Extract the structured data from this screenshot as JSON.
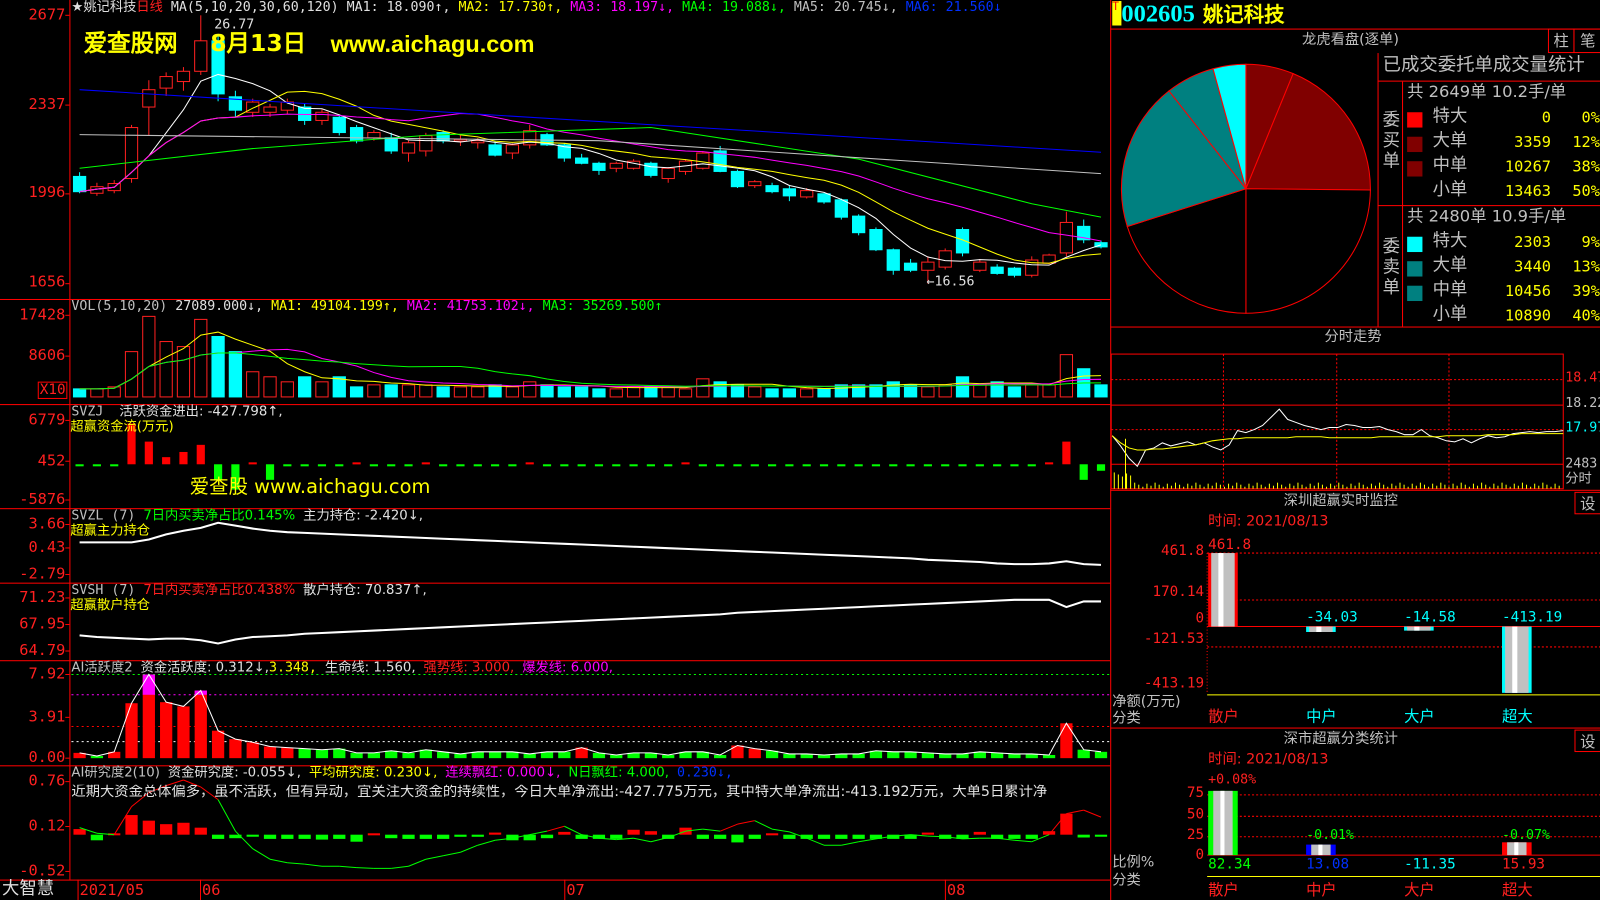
{
  "header": {
    "name_line": "★姚记科技",
    "period": "日线",
    "ma_label": "MA(5,10,20,30,60,120)",
    "ma1": "MA1: 18.090↑,",
    "ma2": "MA2: 17.730↑,",
    "ma3": "MA3: 18.197↓,",
    "ma4": "MA4: 19.088↓,",
    "ma5": "MA5: 20.745↓,",
    "ma6": "MA6: 21.560↓",
    "high_mark": "26.77",
    "low_mark": "←16.56"
  },
  "watermark": {
    "site": "爱查股网",
    "date": "8月13日",
    "url": "www.aichagu.com",
    "small": "爱查股 www.aichagu.com"
  },
  "colors": {
    "up": "#ff2020",
    "down": "#00ffff",
    "ma5": "#ffffff",
    "ma10": "#ffff00",
    "ma20": "#ff00ff",
    "ma30": "#00ff00",
    "ma60": "#c0c0c0",
    "ma120": "#0000ff"
  },
  "price_axis": {
    "ticks": [
      "2677",
      "2337",
      "1996",
      "1656"
    ],
    "range": [
      16.56,
      26.77
    ]
  },
  "candles": [
    [
      20.64,
      20.8,
      20.0,
      20.06
    ],
    [
      20.0,
      20.4,
      19.9,
      20.25
    ],
    [
      20.1,
      20.5,
      20.0,
      20.37
    ],
    [
      20.56,
      22.6,
      20.4,
      22.5
    ],
    [
      23.28,
      24.3,
      22.2,
      23.94
    ],
    [
      24.0,
      24.6,
      23.7,
      24.44
    ],
    [
      24.25,
      24.8,
      23.9,
      24.64
    ],
    [
      24.64,
      26.77,
      24.5,
      25.8
    ],
    [
      25.8,
      26.0,
      23.5,
      23.78
    ],
    [
      23.67,
      23.9,
      22.9,
      23.16
    ],
    [
      23.08,
      23.6,
      22.9,
      23.47
    ],
    [
      23.08,
      23.4,
      22.9,
      23.28
    ],
    [
      23.16,
      23.6,
      23.0,
      23.47
    ],
    [
      23.28,
      23.4,
      22.6,
      22.77
    ],
    [
      22.77,
      23.2,
      22.6,
      23.08
    ],
    [
      22.89,
      23.0,
      22.2,
      22.31
    ],
    [
      22.5,
      22.6,
      21.9,
      21.99
    ],
    [
      22.11,
      22.4,
      22.0,
      22.31
    ],
    [
      22.11,
      22.3,
      21.5,
      21.61
    ],
    [
      21.53,
      22.0,
      21.2,
      21.92
    ],
    [
      21.61,
      22.3,
      21.4,
      22.19
    ],
    [
      22.31,
      22.4,
      21.9,
      21.99
    ],
    [
      21.99,
      22.2,
      21.8,
      22.05
    ],
    [
      21.92,
      22.1,
      21.7,
      22.0
    ],
    [
      21.84,
      22.0,
      21.4,
      21.45
    ],
    [
      21.53,
      21.9,
      21.3,
      21.84
    ],
    [
      21.84,
      22.6,
      21.7,
      22.38
    ],
    [
      22.23,
      22.3,
      21.8,
      21.84
    ],
    [
      21.84,
      21.9,
      21.2,
      21.34
    ],
    [
      21.34,
      21.5,
      21.1,
      21.14
    ],
    [
      21.14,
      21.2,
      20.7,
      20.87
    ],
    [
      20.95,
      21.2,
      20.8,
      21.14
    ],
    [
      20.95,
      21.3,
      20.9,
      21.22
    ],
    [
      21.14,
      21.2,
      20.6,
      20.68
    ],
    [
      20.56,
      21.0,
      20.4,
      20.95
    ],
    [
      20.83,
      21.3,
      20.7,
      21.22
    ],
    [
      20.95,
      21.6,
      20.9,
      21.53
    ],
    [
      21.61,
      21.8,
      20.8,
      20.83
    ],
    [
      20.83,
      20.9,
      20.2,
      20.25
    ],
    [
      20.29,
      20.5,
      20.2,
      20.44
    ],
    [
      20.29,
      20.4,
      20.0,
      20.06
    ],
    [
      20.17,
      20.3,
      19.7,
      19.9
    ],
    [
      19.86,
      20.2,
      19.8,
      20.1
    ],
    [
      19.98,
      20.0,
      19.6,
      19.67
    ],
    [
      19.75,
      19.8,
      19.0,
      19.09
    ],
    [
      19.13,
      19.2,
      18.4,
      18.5
    ],
    [
      18.62,
      18.7,
      17.8,
      17.85
    ],
    [
      17.85,
      17.9,
      16.9,
      17.07
    ],
    [
      17.34,
      17.5,
      17.0,
      17.07
    ],
    [
      17.07,
      17.6,
      16.56,
      17.38
    ],
    [
      17.19,
      17.9,
      17.1,
      17.81
    ],
    [
      18.62,
      18.7,
      17.6,
      17.73
    ],
    [
      17.07,
      17.5,
      17.0,
      17.38
    ],
    [
      17.19,
      17.3,
      16.9,
      16.95
    ],
    [
      17.15,
      17.2,
      16.8,
      16.88
    ],
    [
      16.88,
      17.6,
      16.8,
      17.46
    ],
    [
      17.34,
      17.7,
      17.3,
      17.65
    ],
    [
      17.73,
      19.3,
      17.6,
      18.89
    ],
    [
      18.74,
      19.0,
      18.1,
      18.23
    ],
    [
      18.12,
      18.2,
      17.9,
      17.96
    ]
  ],
  "ma_long": {
    "ma30": [
      [
        0,
        20.95
      ],
      [
        10,
        21.7
      ],
      [
        20,
        22.2
      ],
      [
        33,
        22.5
      ],
      [
        45,
        21.3
      ],
      [
        55,
        19.6
      ],
      [
        59,
        19.09
      ]
    ],
    "ma60": [
      [
        0,
        22.23
      ],
      [
        30,
        22.0
      ],
      [
        59,
        20.745
      ]
    ],
    "ma120": [
      [
        0,
        23.94
      ],
      [
        59,
        21.56
      ]
    ]
  },
  "volume": {
    "label": "VOL(5,10,20)",
    "value": "27089.000↓,",
    "ma1": "MA1: 49104.199↑,",
    "ma2": "MA2: 41753.102↓,",
    "ma3": "MA3: 35269.500↑",
    "ticks": [
      "17428",
      "8606"
    ],
    "unit": "X10",
    "max": 18000,
    "values": [
      1720,
      1720,
      2150,
      9675,
      17200,
      11825,
      10750,
      16555,
      12900,
      9675,
      5375,
      4300,
      3225,
      4300,
      3225,
      4300,
      2150,
      2580,
      2580,
      2580,
      2580,
      2150,
      2150,
      2150,
      2580,
      2150,
      3225,
      2580,
      2150,
      2150,
      1720,
      1720,
      2150,
      2150,
      2150,
      1720,
      3870,
      3225,
      2580,
      2150,
      1720,
      1720,
      1720,
      1720,
      2580,
      2580,
      2580,
      3225,
      2580,
      2150,
      2580,
      4300,
      2580,
      3225,
      2150,
      2580,
      2580,
      9030,
      6020,
      2580
    ]
  },
  "svzj": {
    "label": "SVZJ",
    "title": "活跃资金进出: -427.798↑,",
    "sub": "超赢资金流(万元)",
    "ticks": [
      "6779",
      "452",
      "-5876"
    ],
    "values": [
      -300,
      -300,
      -300,
      6300,
      3500,
      1100,
      1900,
      3000,
      -2400,
      -3900,
      300,
      -2400,
      -300,
      -300,
      -300,
      -300,
      300,
      -300,
      -300,
      -300,
      300,
      -300,
      -300,
      -300,
      -300,
      -300,
      300,
      -300,
      -300,
      -300,
      -300,
      -300,
      -300,
      -300,
      -300,
      300,
      -300,
      -300,
      -300,
      -300,
      -300,
      -300,
      -300,
      -300,
      -300,
      -300,
      -300,
      -300,
      -300,
      -300,
      -300,
      -300,
      -300,
      -300,
      -300,
      -300,
      300,
      3500,
      -2400,
      -1000
    ]
  },
  "svzl": {
    "label": "SVZL (7)",
    "ratio": "7日内买卖净占比0.145%",
    "hold": "主力持仓: -2.420↓,",
    "sub": "超赢主力持仓",
    "ticks": [
      "3.66",
      "0.43",
      "-2.79"
    ],
    "values": [
      1.2,
      1.2,
      1.2,
      1.2,
      1.6,
      2.3,
      2.8,
      3.2,
      3.9,
      3.5,
      3.1,
      2.8,
      2.6,
      2.5,
      2.4,
      2.3,
      2.2,
      2.1,
      2.0,
      1.9,
      1.8,
      1.7,
      1.6,
      1.5,
      1.4,
      1.3,
      1.2,
      1.1,
      1.0,
      0.9,
      0.8,
      0.7,
      0.6,
      0.5,
      0.4,
      0.3,
      0.2,
      0.1,
      0.0,
      -0.1,
      -0.2,
      -0.3,
      -0.4,
      -0.5,
      -0.6,
      -0.7,
      -0.8,
      -0.9,
      -1.0,
      -1.2,
      -1.3,
      -1.4,
      -1.5,
      -1.7,
      -1.8,
      -1.8,
      -1.7,
      -1.4,
      -1.8,
      -1.9
    ]
  },
  "svsh": {
    "label": "SVSH (7)",
    "ratio": "7日内买卖净占比0.438%",
    "hold": "散户持仓: 70.837↑,",
    "sub": "超赢散户持仓",
    "ticks": [
      "71.23",
      "67.95",
      "64.79"
    ],
    "values": [
      66.6,
      66.4,
      66.3,
      66.2,
      66.1,
      66.2,
      66.2,
      66.0,
      65.6,
      66.1,
      66.4,
      66.5,
      66.6,
      66.8,
      66.9,
      67.0,
      67.1,
      67.2,
      67.3,
      67.4,
      67.5,
      67.6,
      67.7,
      67.8,
      67.9,
      68.0,
      68.1,
      68.2,
      68.3,
      68.4,
      68.5,
      68.6,
      68.7,
      68.8,
      68.9,
      69.0,
      69.1,
      69.2,
      69.4,
      69.5,
      69.6,
      69.7,
      69.8,
      69.9,
      70.0,
      70.1,
      70.2,
      70.3,
      70.4,
      70.5,
      70.6,
      70.7,
      70.8,
      70.9,
      71.0,
      71.0,
      71.0,
      70.1,
      70.8,
      70.8
    ]
  },
  "ai_active": {
    "label": "AI活跃度2",
    "v1": "资金活跃度: 0.312↓,",
    "v2": "3.348,",
    "v3": "生命线: 1.560,",
    "v4": "强势线: 3.000,",
    "v5": "爆发线: 6.000,",
    "ticks": [
      "7.92",
      "3.91",
      "0.00"
    ],
    "values": [
      0.5,
      0.2,
      0.6,
      5.2,
      7.92,
      5.3,
      4.9,
      6.4,
      2.6,
      1.8,
      1.5,
      1.1,
      1.0,
      0.9,
      0.8,
      0.9,
      0.5,
      0.5,
      0.7,
      0.5,
      0.8,
      0.6,
      0.4,
      0.6,
      0.6,
      0.6,
      0.4,
      0.6,
      0.6,
      1.0,
      0.5,
      0.3,
      0.5,
      0.5,
      0.3,
      0.6,
      0.6,
      0.3,
      1.2,
      0.9,
      0.7,
      0.4,
      0.4,
      0.3,
      0.4,
      0.4,
      0.7,
      0.6,
      0.6,
      0.5,
      0.4,
      0.4,
      0.6,
      0.5,
      0.4,
      0.4,
      0.3,
      3.3,
      0.8,
      0.6
    ]
  },
  "ai_research": {
    "label": "AI研究度2(10)",
    "v1": "资金研究度: -0.055↓,",
    "v2": "平均研究度: 0.230↓,",
    "v3": "连续飘红: 0.000↓,",
    "v4": "N日飘红: 4.000,",
    "v5": "0.230↓,",
    "comment": "近期大资金总体偏多，虽不活跃，但有异动，宜关注大资金的持续性，今日大单净流出:-427.775万元，其中特大单净流出:-413.192万元，大单5日累计净",
    "ticks": [
      "0.76",
      "0.12",
      "-0.52"
    ],
    "bars": [
      0.08,
      -0.08,
      0.02,
      0.28,
      0.2,
      0.15,
      0.17,
      0.1,
      -0.06,
      -0.05,
      -0.02,
      -0.06,
      -0.06,
      -0.06,
      -0.07,
      -0.06,
      -0.1,
      0.02,
      -0.05,
      -0.06,
      -0.06,
      -0.06,
      -0.03,
      -0.03,
      0.03,
      -0.08,
      -0.08,
      -0.05,
      0.04,
      -0.06,
      -0.06,
      -0.06,
      0.07,
      0.05,
      -0.06,
      0.1,
      -0.06,
      -0.06,
      -0.11,
      -0.06,
      0.02,
      -0.06,
      -0.06,
      -0.06,
      -0.06,
      -0.06,
      -0.06,
      -0.06,
      -0.06,
      0.03,
      -0.06,
      -0.06,
      0.04,
      -0.06,
      -0.06,
      -0.06,
      0.05,
      0.3,
      -0.04,
      -0.02
    ],
    "line": [
      0.1,
      0.02,
      0.0,
      0.4,
      0.6,
      0.7,
      0.78,
      0.68,
      0.5,
      0.05,
      -0.2,
      -0.35,
      -0.4,
      -0.42,
      -0.45,
      -0.45,
      -0.47,
      -0.48,
      -0.48,
      -0.45,
      -0.35,
      -0.3,
      -0.25,
      -0.15,
      -0.08,
      -0.05,
      0.0,
      0.05,
      0.12,
      0.0,
      -0.05,
      -0.07,
      -0.05,
      -0.1,
      -0.04,
      0.05,
      0.08,
      0.05,
      0.15,
      0.2,
      0.08,
      0.04,
      -0.05,
      -0.15,
      -0.15,
      -0.1,
      -0.06,
      -0.02,
      0.0,
      -0.02,
      -0.03,
      -0.06,
      -0.05,
      -0.05,
      -0.08,
      -0.1,
      0.0,
      0.3,
      0.35,
      0.25
    ]
  },
  "x_axis": {
    "app": "大智慧",
    "labels": [
      "2021/05",
      "06",
      "07",
      "08"
    ]
  },
  "stock": {
    "badge": "T",
    "code": "002605",
    "name": "姚记科技"
  },
  "dragon": {
    "title": "龙虎看盘(逐单)",
    "btn_bar": "柱",
    "btn_tick": "笔",
    "stats_title": "已成交委托单成交量统计",
    "buy": {
      "side": "委买单",
      "summary": "共 2649单 10.2手/单",
      "rows": [
        {
          "label": "特大",
          "value": "0",
          "pct": "0%",
          "color": "#ff0000"
        },
        {
          "label": "大单",
          "value": "3359",
          "pct": "12%",
          "color": "#800000"
        },
        {
          "label": "中单",
          "value": "10267",
          "pct": "38%",
          "color": "#800000"
        },
        {
          "label": "小单",
          "value": "13463",
          "pct": "50%",
          "color": "#000000"
        }
      ]
    },
    "sell": {
      "side": "委卖单",
      "summary": "共 2480单 10.9手/单",
      "rows": [
        {
          "label": "特大",
          "value": "2303",
          "pct": "9%",
          "color": "#00ffff"
        },
        {
          "label": "大单",
          "value": "3440",
          "pct": "13%",
          "color": "#008080"
        },
        {
          "label": "中单",
          "value": "10456",
          "pct": "39%",
          "color": "#008080"
        },
        {
          "label": "小单",
          "value": "10890",
          "pct": "40%",
          "color": "#000000"
        }
      ]
    }
  },
  "intraday": {
    "title": "分时走势",
    "ticks": [
      "18.47",
      "18.22",
      "17.97"
    ],
    "vol_tick": "2483",
    "vol_label": "分时",
    "price": [
      17.92,
      17.82,
      17.7,
      17.62,
      17.78,
      17.8,
      17.85,
      17.82,
      17.84,
      17.86,
      17.83,
      17.85,
      17.81,
      17.78,
      17.83,
      17.97,
      17.95,
      17.98,
      18.02,
      18.1,
      18.18,
      18.08,
      18.05,
      18.02,
      18.0,
      17.98,
      18.0,
      18.0,
      18.03,
      18.02,
      18.0,
      18.0,
      18.01,
      17.98,
      17.96,
      17.93,
      17.93,
      17.98,
      17.92,
      17.9,
      17.87,
      17.86,
      17.89,
      17.85,
      17.89,
      17.92,
      17.9,
      17.91,
      17.94,
      17.95,
      17.96,
      17.95,
      17.96,
      17.96,
      17.97
    ],
    "avg": [
      17.92,
      17.85,
      17.8,
      17.78,
      17.78,
      17.79,
      17.79,
      17.8,
      17.81,
      17.82,
      17.83,
      17.85,
      17.87,
      17.88,
      17.89,
      17.89,
      17.9,
      17.9,
      17.9,
      17.9,
      17.9,
      17.9,
      17.91,
      17.91,
      17.91,
      17.91,
      17.9,
      17.9,
      17.9,
      17.9,
      17.9,
      17.9,
      17.91,
      17.91,
      17.91,
      17.91,
      17.91,
      17.91,
      17.91,
      17.91,
      17.92,
      17.92,
      17.92,
      17.92,
      17.92,
      17.93,
      17.93,
      17.93,
      17.93,
      17.94,
      17.94,
      17.94,
      17.94,
      17.94,
      17.94
    ]
  },
  "sz_monitor": {
    "title": "深圳超赢实时监控",
    "time": "时间: 2021/08/13",
    "ticks": [
      "461.8",
      "170.14",
      "0",
      "-121.53",
      "-413.19"
    ],
    "ylabel": "净额(万元)",
    "xlabel": "分类",
    "btn": "设",
    "bars": [
      {
        "cat": "散户",
        "value": 461.8,
        "label": "461.8"
      },
      {
        "cat": "中户",
        "value": -34.03,
        "label": "-34.03"
      },
      {
        "cat": "大户",
        "value": -14.58,
        "label": "-14.58"
      },
      {
        "cat": "超大",
        "value": -413.19,
        "label": "-413.19"
      }
    ]
  },
  "sz_class": {
    "title": "深市超赢分类统计",
    "time": "时间: 2021/08/13",
    "ticks": [
      "75",
      "50",
      "25",
      "0"
    ],
    "ylabel": "比例%",
    "xlabel": "分类",
    "btn": "设",
    "bars": [
      {
        "cat": "散户",
        "value": 82.34,
        "label": "82.34",
        "change": "+0.08%"
      },
      {
        "cat": "中户",
        "value": 13.08,
        "label": "13.08",
        "change": "-0.01%"
      },
      {
        "cat": "大户",
        "value": -11.35,
        "label": "-11.35",
        "change": ""
      },
      {
        "cat": "超大",
        "value": 15.93,
        "label": "15.93",
        "change": "-0.07%"
      }
    ]
  }
}
